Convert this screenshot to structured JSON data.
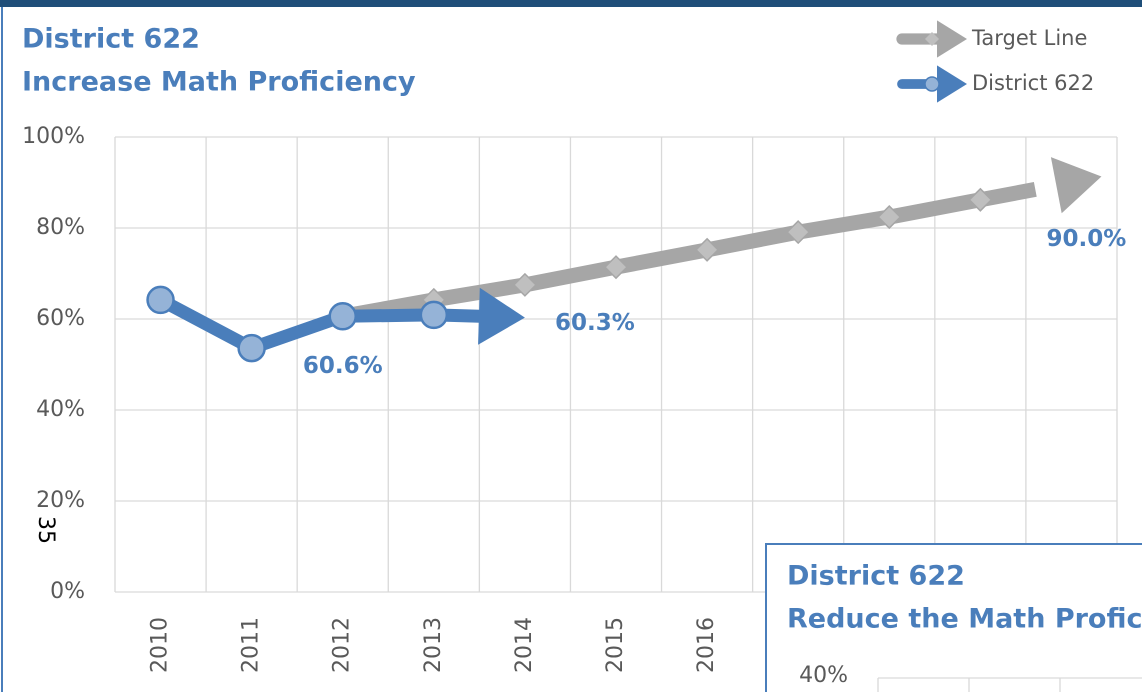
{
  "chart_data": [
    {
      "type": "line",
      "title": "District 622",
      "subtitle": "Increase Math Proficiency",
      "categories": [
        "2010",
        "2011",
        "2012",
        "2013",
        "2014",
        "2015",
        "2016",
        null,
        null,
        null,
        null
      ],
      "series": [
        {
          "name": "Target Line",
          "color": "#a6a6a6",
          "marker_color": "#bfbfbf",
          "values": [
            null,
            null,
            60.6,
            64.2,
            67.5,
            71.4,
            75.2,
            79.1,
            82.4,
            86.2,
            90.0
          ],
          "value_labels": [
            null,
            null,
            null,
            null,
            null,
            null,
            null,
            null,
            null,
            null,
            "90.0%"
          ]
        },
        {
          "name": "District 622",
          "color": "#4a7ebb",
          "marker_color": "#95b3d7",
          "values": [
            64.2,
            53.6,
            60.6,
            60.9,
            60.3,
            null,
            null,
            null,
            null,
            null,
            null
          ],
          "value_labels": [
            null,
            null,
            "60.6%",
            null,
            "60.3%",
            null,
            null,
            null,
            null,
            null,
            null
          ]
        }
      ],
      "ylim": [
        0,
        100
      ],
      "yticks": [
        {
          "value": 0,
          "label": "0%"
        },
        {
          "value": 20,
          "label": "20%"
        },
        {
          "value": 40,
          "label": "40%"
        },
        {
          "value": 60,
          "label": "60%"
        },
        {
          "value": 80,
          "label": "80%"
        },
        {
          "value": 100,
          "label": "100%"
        }
      ],
      "grid": true,
      "legend": "top-right"
    },
    {
      "type": "line",
      "title": "District 622",
      "subtitle": "Reduce the Math Profici",
      "yticks": [
        {
          "value": 40,
          "label": "40%"
        }
      ]
    }
  ],
  "page_number": "35"
}
